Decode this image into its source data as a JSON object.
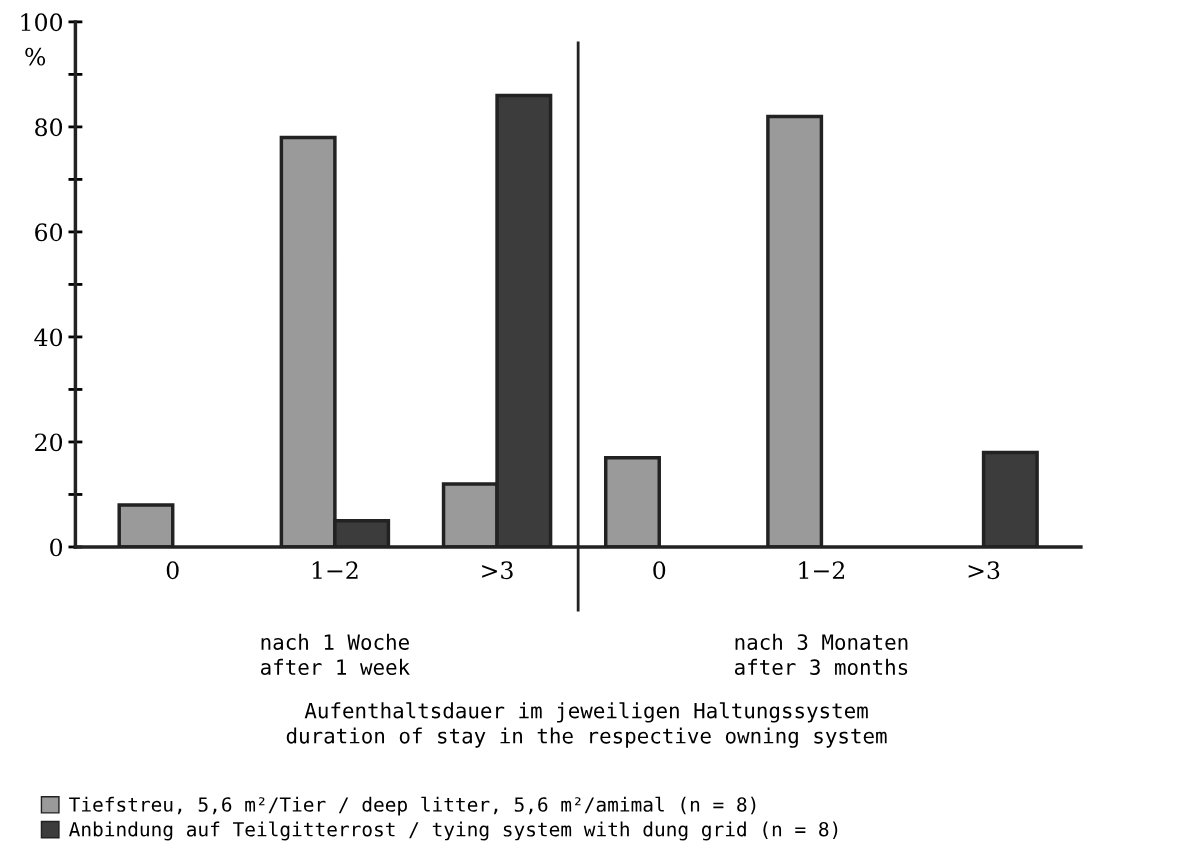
{
  "chart_data": {
    "type": "bar",
    "ylabel": "%",
    "categories": [
      "0",
      "1−2",
      ">3",
      "0",
      "1−2",
      ">3"
    ],
    "series": [
      {
        "name": "Tiefstreu, 5,6 m²/Tier / deep litter, 5,6 m²/amimal (n = 8)",
        "color": "#9a9a9a",
        "values": [
          8,
          78,
          12,
          17,
          82,
          0
        ]
      },
      {
        "name": "Anbindung auf Teilgitterrost / tying system with dung grid (n = 8)",
        "color": "#3c3c3c",
        "values": [
          0,
          5,
          86,
          0,
          0,
          18
        ]
      }
    ],
    "ylim": [
      0,
      100
    ],
    "yticks": [
      0,
      {
        "value": 10,
        "label": null
      },
      20,
      {
        "value": 30,
        "label": null
      },
      40,
      {
        "value": 50,
        "label": null
      },
      60,
      {
        "value": 70,
        "label": null
      },
      80,
      {
        "value": 90,
        "label": null
      },
      100
    ],
    "annotations": [
      "nach 1 Woche\nafter 1 week",
      "nach 3 Monaten\nafter 3 months",
      "Aufenthaltsdauer im jeweiligen Haltungssystem\nduration of stay in the respective owning system"
    ],
    "grid": false,
    "legend": "bottom left"
  }
}
